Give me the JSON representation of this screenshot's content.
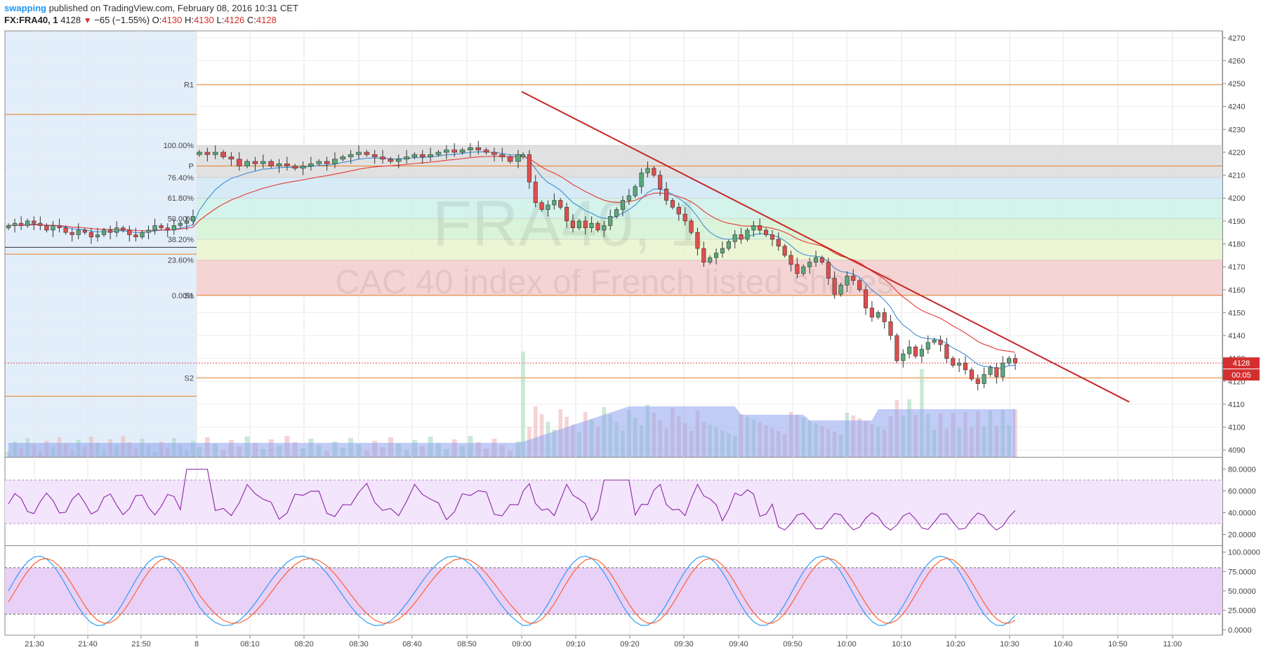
{
  "header": {
    "author": "swapping",
    "published_text": "published on TradingView.com, February 08, 2016 10:31 CET",
    "symbol": "FX:FRA40, 1",
    "last": "4128",
    "change": "−65 (−1.55%)",
    "open_label": "O:",
    "open": "4130",
    "high_label": "H:",
    "high": "4130",
    "low_label": "L:",
    "low": "4126",
    "close_label": "C:",
    "close": "4128"
  },
  "watermark": {
    "symbol": "FRA40, 1",
    "description": "CAC 40 index of French listed shares"
  },
  "colors": {
    "up": "#5aa87a",
    "down": "#e04e4e",
    "volume": "#8ea4ee",
    "ema_fast": "#3d8fd6",
    "ema_slow": "#e53935",
    "rsi": "#8e24aa",
    "stoch_k": "#2196f3",
    "stoch_d": "#ff5722",
    "pivot": "#e67e22",
    "trend": "#c62828"
  },
  "chart_data": {
    "type": "candlestick",
    "price_axis": {
      "ticks": [
        "4270",
        "4260",
        "4250",
        "4240",
        "4230",
        "4220",
        "4210",
        "4200",
        "4190",
        "4180",
        "4170",
        "4160",
        "4150",
        "4140",
        "4130",
        "4120",
        "4110",
        "4100",
        "4090"
      ],
      "range": [
        4087,
        4273
      ]
    },
    "time_axis": {
      "ticks": [
        "21:30",
        "21:40",
        "21:50",
        "8",
        "08:10",
        "08:20",
        "08:30",
        "08:40",
        "08:50",
        "09:00",
        "09:10",
        "09:20",
        "09:30",
        "09:40",
        "09:50",
        "10:00",
        "10:10",
        "10:20",
        "10:30",
        "10:40",
        "10:50",
        "11:00"
      ]
    },
    "last_price_label": "4128",
    "countdown_label": "00:05",
    "pivots": [
      {
        "label": "R1",
        "value": 4249.5
      },
      {
        "label": "P",
        "value": 4214
      },
      {
        "label": "S1",
        "value": 4157.5
      },
      {
        "label": "S2",
        "value": 4121.5
      }
    ],
    "prev_session_pivots": [
      4236.5,
      4175.5,
      4113.5
    ],
    "fibonacci": [
      {
        "label": "100.00%",
        "value": 4223
      },
      {
        "label": "76.40%",
        "value": 4209
      },
      {
        "label": "61.80%",
        "value": 4200
      },
      {
        "label": "50.00%",
        "value": 4191
      },
      {
        "label": "38.20%",
        "value": 4182
      },
      {
        "label": "23.60%",
        "value": 4173
      },
      {
        "label": "0.00%",
        "value": 4157.5
      }
    ],
    "trendline": {
      "from": {
        "time": "09:00",
        "price": 4246.5
      },
      "to": {
        "time": "10:53",
        "price": 4111
      }
    },
    "rsi": {
      "ticks": [
        "80.0000",
        "60.0000",
        "40.0000",
        "20.0000"
      ],
      "upper": 70,
      "lower": 30,
      "last": 42
    },
    "stochastic": {
      "ticks": [
        "100.0000",
        "75.0000",
        "50.0000",
        "25.0000",
        "0.0000"
      ],
      "upper": 80,
      "lower": 20
    }
  }
}
